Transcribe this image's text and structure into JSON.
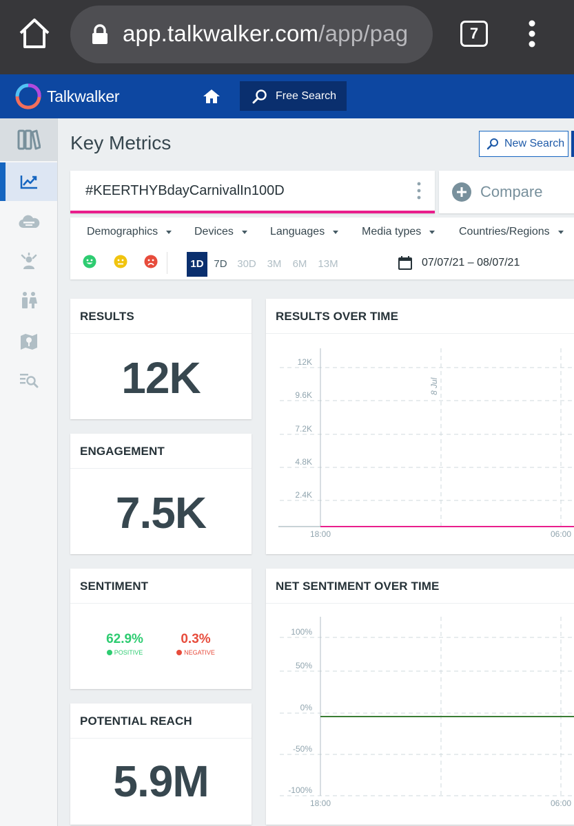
{
  "browser": {
    "url_host": "app.talkwalker.com",
    "url_path": "/app/pag",
    "tab_count": "7"
  },
  "header": {
    "logo_text": "Talkwalker",
    "free_search_label": "Free Search"
  },
  "sidebar": {
    "items": [
      {
        "icon": "library-icon",
        "active": false
      },
      {
        "icon": "analytics-icon",
        "active": true
      },
      {
        "icon": "cloud-icon",
        "active": false
      },
      {
        "icon": "influencer-icon",
        "active": false
      },
      {
        "icon": "demographics-icon",
        "active": false
      },
      {
        "icon": "map-icon",
        "active": false
      },
      {
        "icon": "search-list-icon",
        "active": false
      }
    ]
  },
  "main": {
    "title": "Key Metrics",
    "new_search_label": "New Search",
    "query": "#KEERTHYBdayCarnivalIn100D",
    "compare_label": "Compare",
    "filters": [
      "Demographics",
      "Devices",
      "Languages",
      "Media types",
      "Countries/Regions"
    ],
    "periods": [
      "1D",
      "7D",
      "30D",
      "3M",
      "6M",
      "13M"
    ],
    "active_period": "1D",
    "date_range": "07/07/21 – 08/07/21"
  },
  "colors": {
    "accent_blue": "#0d47a1",
    "query_underline": "#e91e8c",
    "positive": "#2ecc71",
    "neutral": "#f1c40f",
    "negative": "#e74c3c"
  },
  "metrics": {
    "results": {
      "title": "RESULTS",
      "value": "12K"
    },
    "engagement": {
      "title": "ENGAGEMENT",
      "value": "7.5K"
    },
    "sentiment": {
      "title": "SENTIMENT",
      "positive_pct": "62.9%",
      "positive_label": "POSITIVE",
      "negative_pct": "0.3%",
      "negative_label": "NEGATIVE"
    },
    "reach": {
      "title": "POTENTIAL REACH",
      "value": "5.9M"
    }
  },
  "chart_data": [
    {
      "type": "line",
      "title": "RESULTS OVER TIME",
      "y_ticks": [
        "12K",
        "9.6K",
        "7.2K",
        "4.8K",
        "2.4K"
      ],
      "x_ticks": [
        "18:00",
        "06:00"
      ],
      "annotation": "8 Jul",
      "ylim": [
        0,
        12000
      ],
      "series": [
        {
          "color": "#e91e8c",
          "values": [
            0,
            0
          ]
        }
      ]
    },
    {
      "type": "line",
      "title": "NET SENTIMENT OVER TIME",
      "y_ticks": [
        "100%",
        "50%",
        "0%",
        "-50%",
        "-100%"
      ],
      "x_ticks": [
        "18:00",
        "06:00"
      ],
      "ylim": [
        -100,
        100
      ],
      "series": [
        {
          "color": "#3a7d34",
          "values": [
            0,
            0
          ]
        }
      ]
    }
  ]
}
